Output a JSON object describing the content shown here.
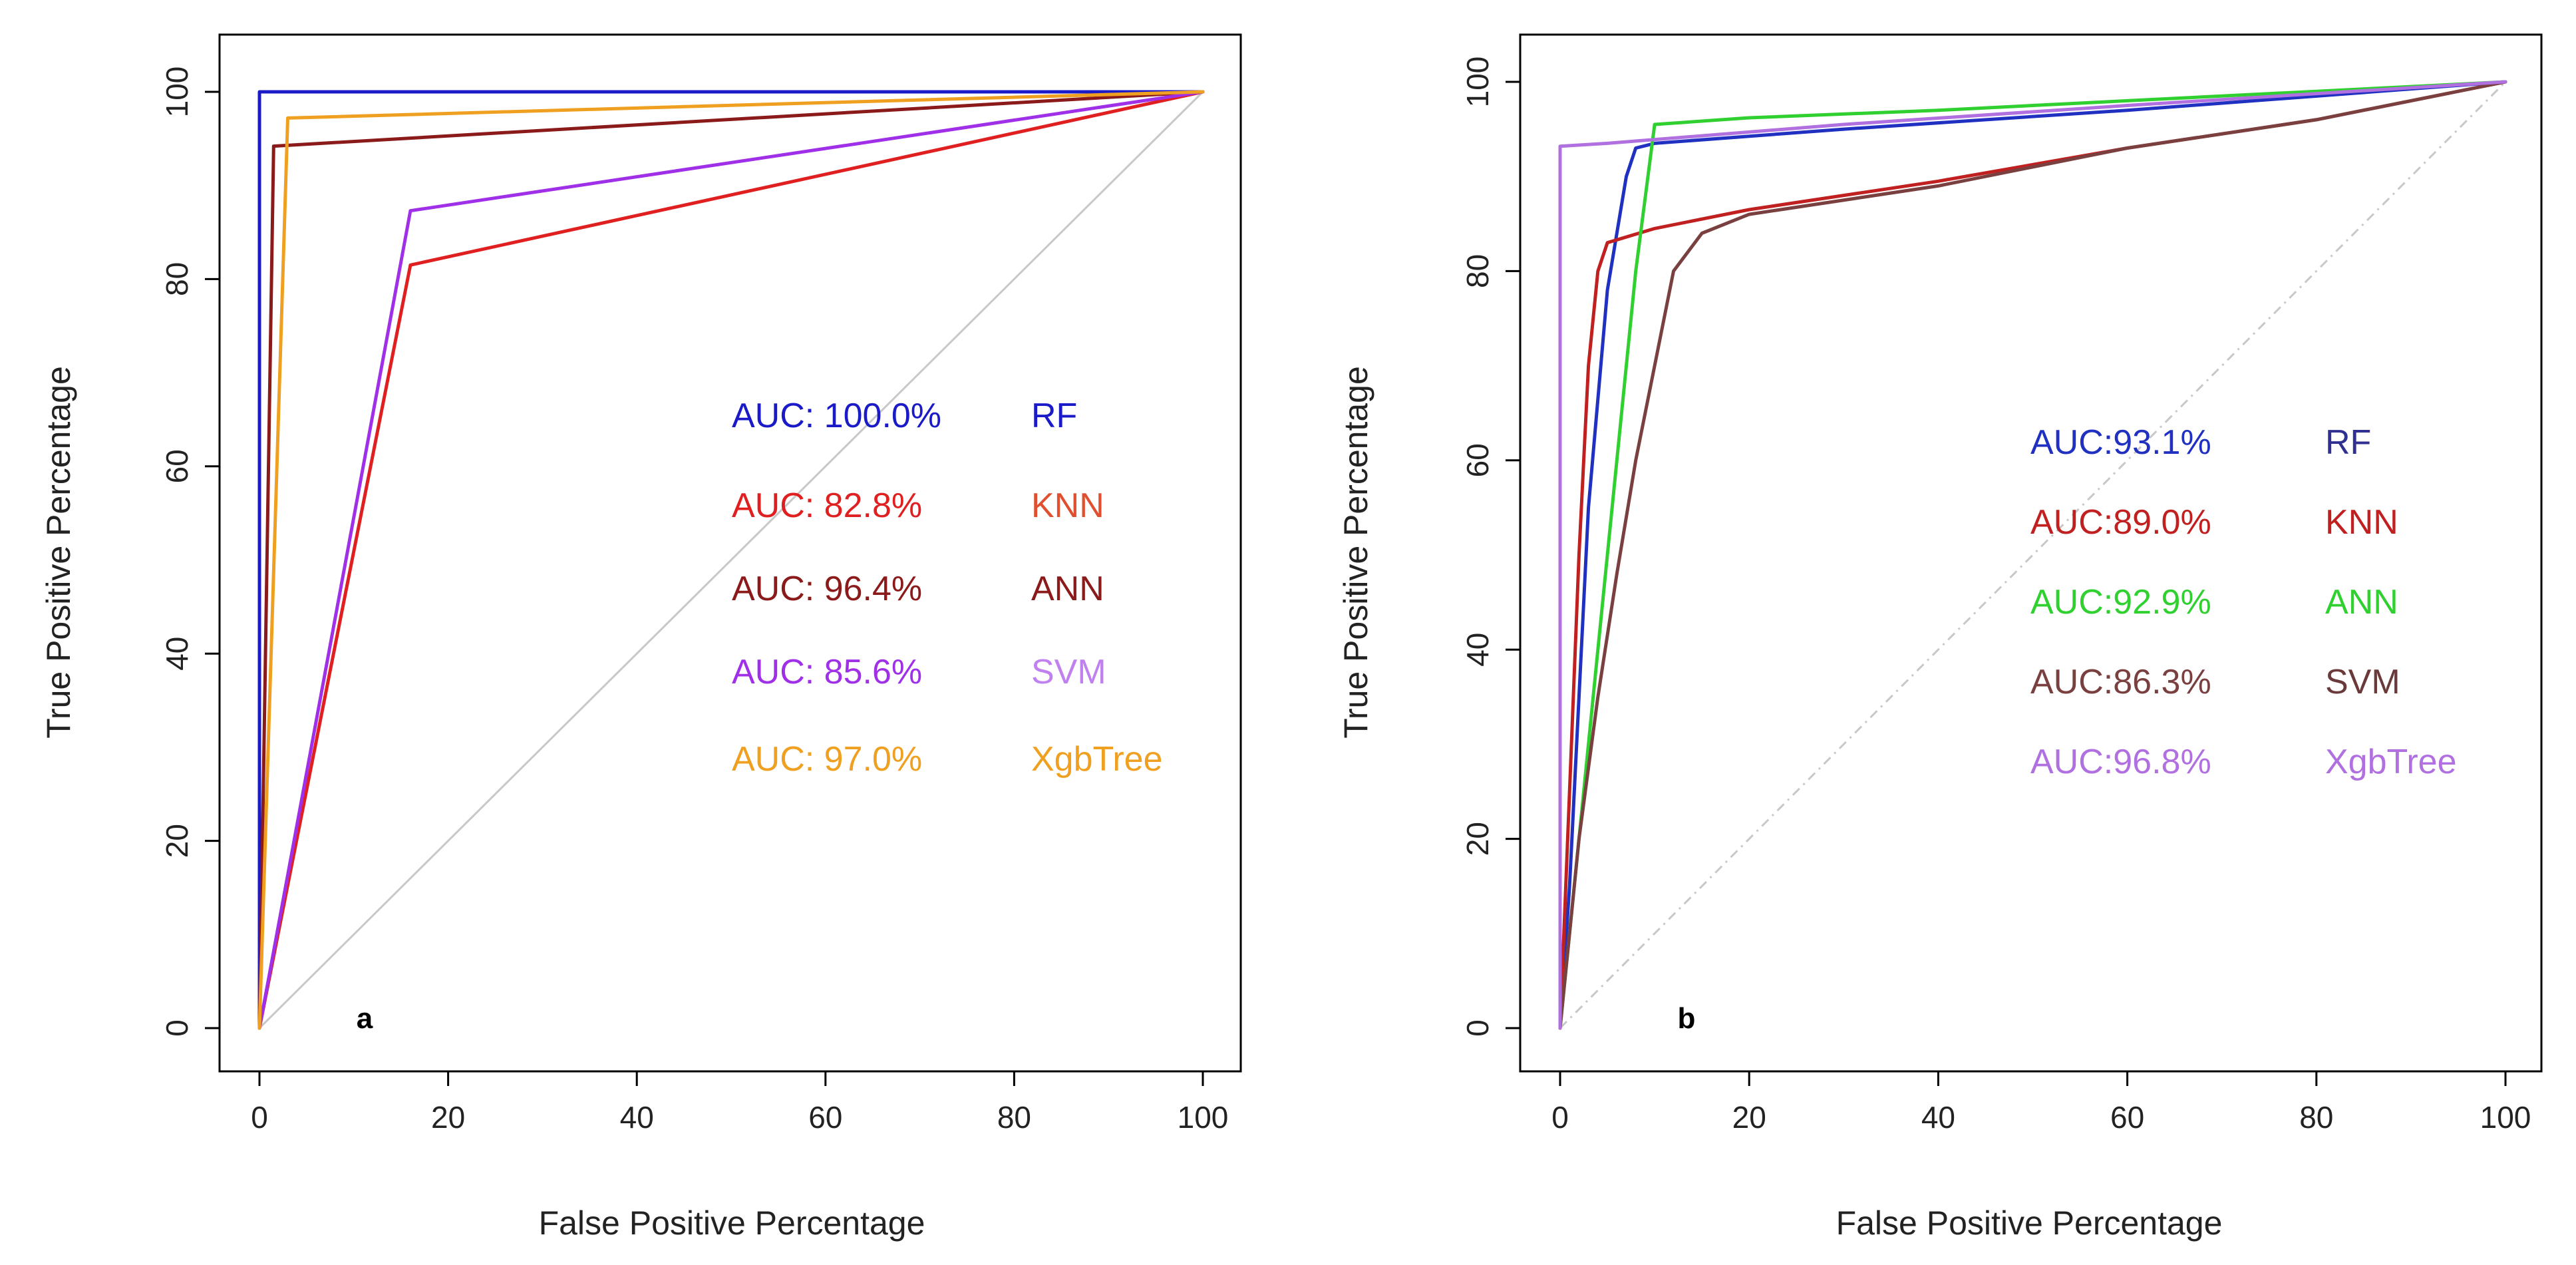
{
  "chart_data": [
    {
      "type": "line",
      "panel_label": "a",
      "xlabel": "False Positive Percentage",
      "ylabel": "True Positive Percentage",
      "xlim": [
        0,
        100
      ],
      "ylim": [
        0,
        100
      ],
      "xticks": [
        0,
        20,
        40,
        60,
        80,
        100
      ],
      "yticks": [
        0,
        20,
        40,
        60,
        80,
        100
      ],
      "diagonal": {
        "style": "solid",
        "color": "#c8c8c8"
      },
      "series": [
        {
          "name": "RF",
          "auc": "AUC: 100.0%",
          "color": "#1a1ac8",
          "x": [
            0,
            0,
            100
          ],
          "y": [
            0,
            100,
            100
          ]
        },
        {
          "name": "KNN",
          "auc": "AUC: 82.8%",
          "color": "#e02020",
          "x": [
            0,
            16,
            100
          ],
          "y": [
            0,
            81.5,
            100
          ]
        },
        {
          "name": "ANN",
          "auc": "AUC: 96.4%",
          "color": "#8b1a1a",
          "x": [
            0,
            1.5,
            100
          ],
          "y": [
            0,
            94.2,
            100
          ]
        },
        {
          "name": "SVM",
          "auc": "AUC: 85.6%",
          "color": "#a030e8",
          "x": [
            0,
            16,
            100
          ],
          "y": [
            0,
            87.3,
            100
          ]
        },
        {
          "name": "XgbTree",
          "auc": "AUC: 97.0%",
          "color": "#f0a020",
          "x": [
            0,
            3,
            100
          ],
          "y": [
            0,
            97.2,
            100
          ]
        }
      ],
      "legend_colors": {
        "RF": "#1a1ac8",
        "KNN": "#e05030",
        "ANN": "#8b1a1a",
        "SVM": "#c080f0",
        "XgbTree": "#f0a020"
      }
    },
    {
      "type": "line",
      "panel_label": "b",
      "xlabel": "False Positive Percentage",
      "ylabel": "True Positive Percentage",
      "xlim": [
        0,
        100
      ],
      "ylim": [
        0,
        100
      ],
      "xticks": [
        0,
        20,
        40,
        60,
        80,
        100
      ],
      "yticks": [
        0,
        20,
        40,
        60,
        80,
        100
      ],
      "diagonal": {
        "style": "dashed",
        "color": "#c8c8c8"
      },
      "series": [
        {
          "name": "RF",
          "auc": "AUC:93.1%",
          "color": "#2030c0",
          "x": [
            0,
            1,
            2,
            3,
            5,
            7,
            8,
            10,
            30,
            60,
            100
          ],
          "y": [
            0,
            15,
            35,
            55,
            78,
            90,
            93,
            93.5,
            95,
            97,
            100
          ]
        },
        {
          "name": "KNN",
          "auc": "AUC:89.0%",
          "color": "#c02020",
          "x": [
            0,
            1,
            2,
            3,
            4,
            5,
            10,
            20,
            40,
            60,
            80,
            100
          ],
          "y": [
            0,
            25,
            50,
            70,
            80,
            83,
            84.5,
            86.5,
            89.5,
            93,
            96,
            100
          ]
        },
        {
          "name": "ANN",
          "auc": "AUC:92.9%",
          "color": "#30d030",
          "x": [
            0,
            2,
            4,
            6,
            8,
            10,
            20,
            40,
            60,
            80,
            100
          ],
          "y": [
            0,
            20,
            40,
            60,
            80,
            95.5,
            96.2,
            97,
            98,
            99,
            100
          ]
        },
        {
          "name": "SVM",
          "auc": "AUC:86.3%",
          "color": "#7a4040",
          "x": [
            0,
            2,
            4,
            6,
            8,
            10,
            12,
            15,
            20,
            40,
            60,
            80,
            100
          ],
          "y": [
            0,
            20,
            35,
            48,
            60,
            70,
            80,
            84,
            86,
            89,
            93,
            96,
            100
          ]
        },
        {
          "name": "XgbTree",
          "auc": "AUC:96.8%",
          "color": "#b070e0",
          "x": [
            0,
            0,
            5,
            30,
            60,
            100
          ],
          "y": [
            0,
            93.2,
            93.5,
            95.5,
            97.5,
            100
          ]
        }
      ],
      "legend_colors": {
        "RF": "#303090",
        "KNN": "#c02020",
        "ANN": "#30d030",
        "SVM": "#6a3a3a",
        "XgbTree": "#b070e0"
      }
    }
  ]
}
